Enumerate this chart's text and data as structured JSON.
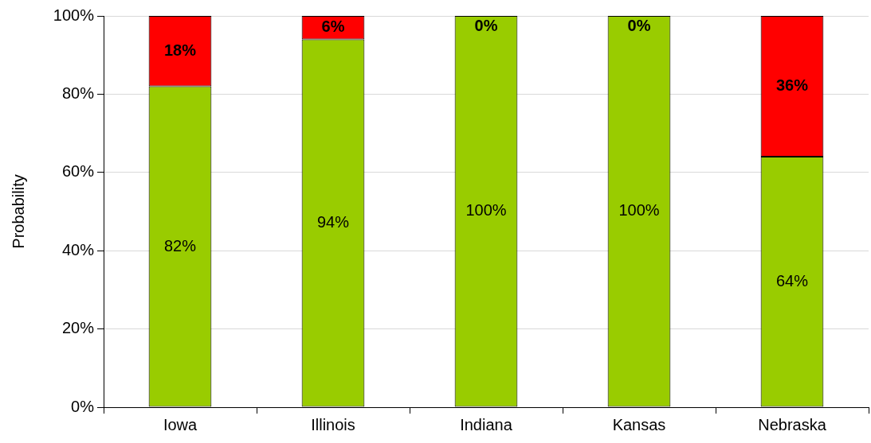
{
  "chart_data": {
    "type": "bar",
    "stacked": true,
    "ylabel": "Probability",
    "categories": [
      "Iowa",
      "Illinois",
      "Indiana",
      "Kansas",
      "Nebraska"
    ],
    "series": [
      {
        "color": "#99cc00",
        "values": [
          82,
          94,
          100,
          100,
          64
        ],
        "value_labels": [
          "82%",
          "94%",
          "100%",
          "100%",
          "64%"
        ]
      },
      {
        "color": "#ff0000",
        "values": [
          18,
          6,
          0,
          0,
          36
        ],
        "value_labels": [
          "18%",
          "6%",
          "0%",
          "0%",
          "36%"
        ]
      }
    ],
    "ylim": [
      0,
      100
    ],
    "yticks": [
      {
        "value": 0,
        "label": "0%"
      },
      {
        "value": 20,
        "label": "20%"
      },
      {
        "value": 40,
        "label": "40%"
      },
      {
        "value": 60,
        "label": "60%"
      },
      {
        "value": 80,
        "label": "80%"
      },
      {
        "value": 100,
        "label": "100%"
      }
    ],
    "grid": "y",
    "legend": false
  }
}
